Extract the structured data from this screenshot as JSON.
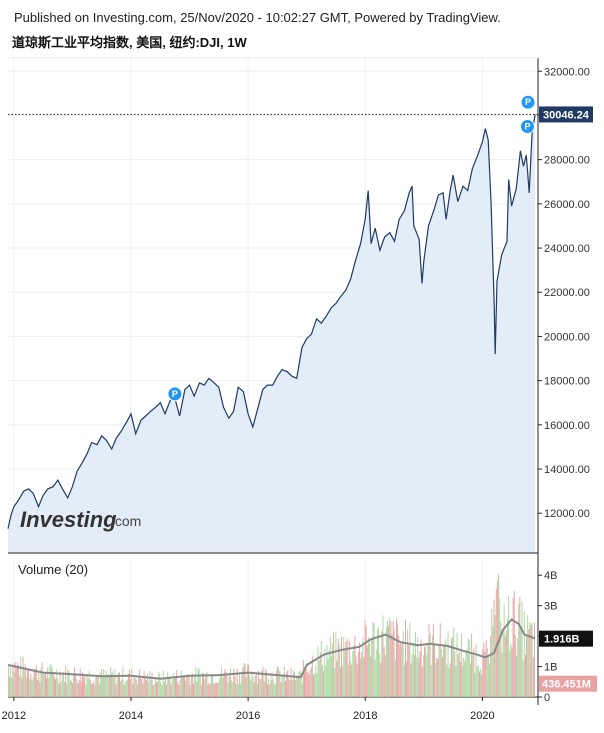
{
  "header": {
    "published": "Published on Investing.com, 25/Nov/2020 - 10:02:27 GMT, Powered by TradingView.",
    "subtitle": "道琼斯工业平均指数, 美国, 纽约:DJI, 1W"
  },
  "logo": {
    "main": "Investing",
    "sub": ".com"
  },
  "colors": {
    "line": "#1f3b63",
    "area": "#e3edf8",
    "current_label_bg": "#1f3b63",
    "marker": "#2196f3",
    "vol_up": "#a8d8a0",
    "vol_down": "#e8a2a2",
    "vol_ma": "#888888"
  },
  "chart_data": [
    {
      "type": "line",
      "name": "price",
      "y_ticks": [
        12000,
        14000,
        16000,
        18000,
        20000,
        22000,
        24000,
        26000,
        28000,
        30000,
        32000
      ],
      "y_tick_labels": [
        "12000.00",
        "14000.00",
        "16000.00",
        "18000.00",
        "20000.00",
        "22000.00",
        "24000.00",
        "26000.00",
        "28000.00",
        "30000.00",
        "32000.00"
      ],
      "ylim": [
        10200,
        32600
      ],
      "xlim": [
        2011.9,
        2020.95
      ],
      "x_ticks": [
        2012,
        2014,
        2016,
        2018,
        2020
      ],
      "x_tick_labels": [
        "2012",
        "2014",
        "2016",
        "2018",
        "2020"
      ],
      "current_value": 30046.24,
      "current_label": "30046.24",
      "markers": [
        {
          "x": 2014.75,
          "y": 17400,
          "label": "P"
        },
        {
          "x": 2020.78,
          "y": 30600,
          "label": "P"
        },
        {
          "x": 2020.77,
          "y": 29500,
          "label": "P"
        }
      ],
      "points": [
        [
          2011.9,
          11300
        ],
        [
          2011.95,
          11900
        ],
        [
          2012.0,
          12300
        ],
        [
          2012.08,
          12600
        ],
        [
          2012.17,
          13000
        ],
        [
          2012.25,
          13100
        ],
        [
          2012.33,
          12900
        ],
        [
          2012.42,
          12300
        ],
        [
          2012.5,
          12800
        ],
        [
          2012.58,
          13100
        ],
        [
          2012.67,
          13200
        ],
        [
          2012.75,
          13500
        ],
        [
          2012.83,
          13100
        ],
        [
          2012.92,
          12700
        ],
        [
          2013.0,
          13200
        ],
        [
          2013.08,
          13900
        ],
        [
          2013.17,
          14300
        ],
        [
          2013.25,
          14700
        ],
        [
          2013.33,
          15200
        ],
        [
          2013.42,
          15100
        ],
        [
          2013.5,
          15500
        ],
        [
          2013.58,
          15300
        ],
        [
          2013.67,
          14900
        ],
        [
          2013.75,
          15400
        ],
        [
          2013.83,
          15700
        ],
        [
          2013.92,
          16100
        ],
        [
          2014.0,
          16500
        ],
        [
          2014.08,
          15600
        ],
        [
          2014.17,
          16200
        ],
        [
          2014.25,
          16400
        ],
        [
          2014.33,
          16600
        ],
        [
          2014.42,
          16800
        ],
        [
          2014.5,
          17000
        ],
        [
          2014.58,
          16500
        ],
        [
          2014.67,
          17100
        ],
        [
          2014.75,
          17200
        ],
        [
          2014.83,
          16400
        ],
        [
          2014.92,
          17600
        ],
        [
          2015.0,
          17800
        ],
        [
          2015.08,
          17300
        ],
        [
          2015.17,
          17900
        ],
        [
          2015.25,
          17800
        ],
        [
          2015.33,
          18100
        ],
        [
          2015.42,
          17900
        ],
        [
          2015.5,
          17700
        ],
        [
          2015.58,
          16800
        ],
        [
          2015.67,
          16300
        ],
        [
          2015.75,
          16600
        ],
        [
          2015.83,
          17700
        ],
        [
          2015.92,
          17500
        ],
        [
          2016.0,
          16500
        ],
        [
          2016.08,
          15900
        ],
        [
          2016.17,
          16800
        ],
        [
          2016.25,
          17600
        ],
        [
          2016.33,
          17800
        ],
        [
          2016.42,
          17800
        ],
        [
          2016.5,
          18200
        ],
        [
          2016.58,
          18500
        ],
        [
          2016.67,
          18400
        ],
        [
          2016.75,
          18200
        ],
        [
          2016.83,
          18100
        ],
        [
          2016.92,
          19500
        ],
        [
          2017.0,
          19900
        ],
        [
          2017.08,
          20100
        ],
        [
          2017.17,
          20800
        ],
        [
          2017.25,
          20600
        ],
        [
          2017.33,
          20900
        ],
        [
          2017.42,
          21300
        ],
        [
          2017.5,
          21500
        ],
        [
          2017.58,
          21800
        ],
        [
          2017.67,
          22100
        ],
        [
          2017.75,
          22600
        ],
        [
          2017.83,
          23400
        ],
        [
          2017.92,
          24200
        ],
        [
          2018.0,
          25300
        ],
        [
          2018.05,
          26600
        ],
        [
          2018.1,
          24200
        ],
        [
          2018.17,
          24900
        ],
        [
          2018.25,
          23900
        ],
        [
          2018.33,
          24500
        ],
        [
          2018.42,
          24700
        ],
        [
          2018.5,
          24300
        ],
        [
          2018.58,
          25300
        ],
        [
          2018.67,
          25700
        ],
        [
          2018.75,
          26500
        ],
        [
          2018.8,
          26800
        ],
        [
          2018.83,
          25000
        ],
        [
          2018.92,
          24400
        ],
        [
          2018.97,
          22400
        ],
        [
          2019.0,
          23400
        ],
        [
          2019.08,
          25000
        ],
        [
          2019.17,
          25700
        ],
        [
          2019.25,
          26400
        ],
        [
          2019.33,
          26500
        ],
        [
          2019.38,
          25300
        ],
        [
          2019.45,
          26600
        ],
        [
          2019.5,
          27300
        ],
        [
          2019.58,
          26100
        ],
        [
          2019.67,
          26800
        ],
        [
          2019.75,
          26600
        ],
        [
          2019.83,
          27600
        ],
        [
          2019.92,
          28200
        ],
        [
          2020.0,
          28800
        ],
        [
          2020.05,
          29400
        ],
        [
          2020.1,
          28900
        ],
        [
          2020.15,
          26000
        ],
        [
          2020.2,
          21600
        ],
        [
          2020.22,
          19200
        ],
        [
          2020.25,
          22500
        ],
        [
          2020.33,
          23700
        ],
        [
          2020.42,
          24300
        ],
        [
          2020.45,
          27100
        ],
        [
          2020.5,
          25900
        ],
        [
          2020.58,
          26700
        ],
        [
          2020.65,
          28400
        ],
        [
          2020.7,
          27700
        ],
        [
          2020.75,
          28200
        ],
        [
          2020.8,
          26500
        ],
        [
          2020.85,
          29200
        ],
        [
          2020.9,
          30046
        ]
      ]
    },
    {
      "type": "bar",
      "name": "volume",
      "title": "Volume (20)",
      "ylim": [
        0,
        4.5
      ],
      "y_ticks": [
        0,
        1,
        2,
        3,
        4
      ],
      "y_tick_labels": [
        "0",
        "1B",
        "",
        "3B",
        "4B"
      ],
      "ma_label": "1.916B",
      "ma_value": 1.916,
      "last_label": "436.451M",
      "last_value": 0.436,
      "ma_points": [
        [
          2011.9,
          1.05
        ],
        [
          2012.5,
          0.8
        ],
        [
          2013.0,
          0.75
        ],
        [
          2013.5,
          0.68
        ],
        [
          2014.0,
          0.7
        ],
        [
          2014.5,
          0.6
        ],
        [
          2015.0,
          0.7
        ],
        [
          2015.5,
          0.72
        ],
        [
          2016.0,
          0.8
        ],
        [
          2016.5,
          0.72
        ],
        [
          2016.9,
          0.65
        ],
        [
          2017.0,
          1.05
        ],
        [
          2017.3,
          1.4
        ],
        [
          2017.6,
          1.55
        ],
        [
          2017.9,
          1.65
        ],
        [
          2018.1,
          1.9
        ],
        [
          2018.35,
          2.05
        ],
        [
          2018.6,
          1.8
        ],
        [
          2018.9,
          1.7
        ],
        [
          2019.1,
          1.75
        ],
        [
          2019.4,
          1.68
        ],
        [
          2019.7,
          1.5
        ],
        [
          2019.9,
          1.4
        ],
        [
          2020.05,
          1.3
        ],
        [
          2020.2,
          1.45
        ],
        [
          2020.35,
          2.2
        ],
        [
          2020.5,
          2.55
        ],
        [
          2020.62,
          2.4
        ],
        [
          2020.72,
          2.05
        ],
        [
          2020.9,
          1.92
        ]
      ]
    }
  ]
}
